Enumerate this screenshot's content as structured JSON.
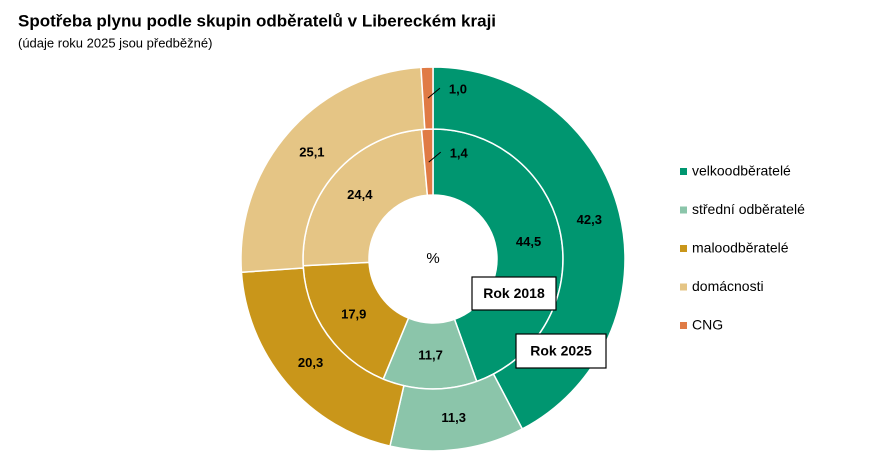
{
  "chart_data": {
    "type": "doughnut",
    "title": "Spotřeba plynu podle skupin odběratelů v Libereckém kraji",
    "subtitle": "(údaje roku 2025 jsou předběžné)",
    "center_label": "%",
    "categories": [
      "velkoodběratelé",
      "střední odběratelé",
      "maloodběratelé",
      "domácnosti",
      "CNG"
    ],
    "colors": [
      "#009670",
      "#8bc5aa",
      "#c9961a",
      "#e5c585",
      "#e07b45"
    ],
    "series": [
      {
        "name": "Rok 2018",
        "values": [
          44.5,
          11.7,
          17.9,
          24.4,
          1.4
        ],
        "value_labels": [
          "44,5",
          "11,7",
          "17,9",
          "24,4",
          "1,4"
        ]
      },
      {
        "name": "Rok 2025",
        "values": [
          42.3,
          11.3,
          20.3,
          25.1,
          1.0
        ],
        "value_labels": [
          "42,3",
          "11,3",
          "20,3",
          "25,1",
          "1,0"
        ]
      }
    ]
  }
}
